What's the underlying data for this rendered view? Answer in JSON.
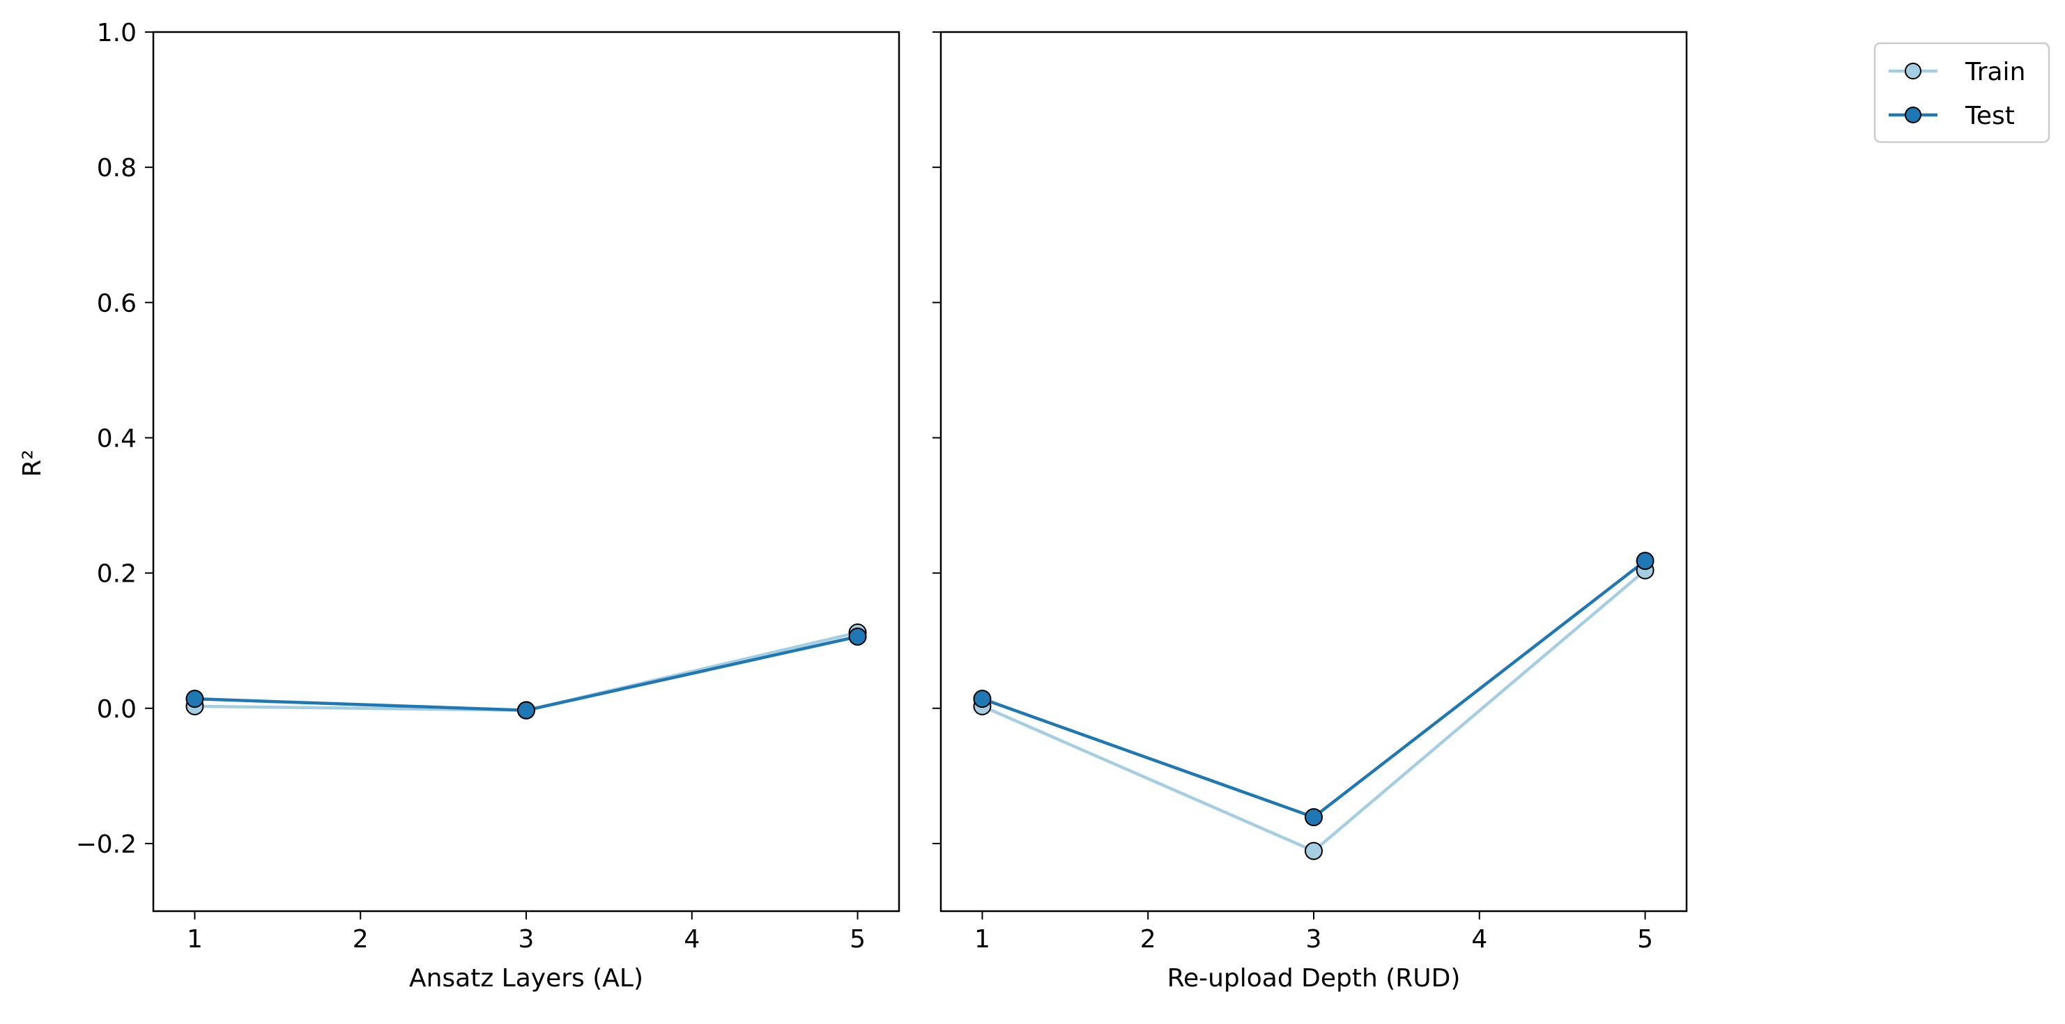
{
  "chart_data": [
    {
      "type": "line",
      "xlabel": "Ansatz Layers (AL)",
      "ylabel": "R²",
      "x": [
        1,
        3,
        5
      ],
      "xlim": [
        0.75,
        5.25
      ],
      "ylim": [
        -0.3,
        1.0
      ],
      "xticks": [
        "1",
        "2",
        "3",
        "4",
        "5"
      ],
      "yticks": [
        "−0.2",
        "0.0",
        "0.2",
        "0.4",
        "0.6",
        "0.8",
        "1.0"
      ],
      "series": [
        {
          "name": "Train",
          "color": "#a6cee3",
          "values": [
            0.003,
            -0.003,
            0.112
          ]
        },
        {
          "name": "Test",
          "color": "#1f78b4",
          "values": [
            0.014,
            -0.003,
            0.106
          ]
        }
      ],
      "grid": false
    },
    {
      "type": "line",
      "xlabel": "Re-upload Depth (RUD)",
      "ylabel": "",
      "x": [
        1,
        3,
        5
      ],
      "xlim": [
        0.75,
        5.25
      ],
      "ylim": [
        -0.3,
        1.0
      ],
      "xticks": [
        "1",
        "2",
        "3",
        "4",
        "5"
      ],
      "series": [
        {
          "name": "Train",
          "color": "#a6cee3",
          "values": [
            0.003,
            -0.211,
            0.204
          ]
        },
        {
          "name": "Test",
          "color": "#1f78b4",
          "values": [
            0.014,
            -0.161,
            0.218
          ]
        }
      ],
      "grid": false
    }
  ],
  "legend": {
    "placement": "top-right",
    "entries": [
      {
        "label": "Train",
        "color": "#a6cee3"
      },
      {
        "label": "Test",
        "color": "#1f78b4"
      }
    ]
  }
}
